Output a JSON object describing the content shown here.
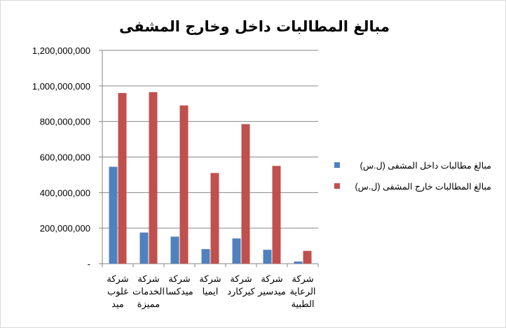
{
  "chart_data": {
    "type": "bar",
    "title": "مبالغ المطالبات داخل وخارج المشفى",
    "xlabel": "",
    "ylabel": "",
    "ylim": [
      0,
      1200000000
    ],
    "yticks": [
      0,
      200000000,
      400000000,
      600000000,
      800000000,
      1000000000,
      1200000000
    ],
    "ytick_labels": [
      "-",
      "200,000,000",
      "400,000,000",
      "600,000,000",
      "800,000,000",
      "1,000,000,000",
      "1,200,000,000"
    ],
    "categories": [
      [
        "شركة",
        "غلوب",
        "ميد"
      ],
      [
        "شركة",
        "الخدمات",
        "مميزة"
      ],
      [
        "شركة",
        "ميدكسا"
      ],
      [
        "شركة",
        "ايميا"
      ],
      [
        "شركة",
        "كيركارد"
      ],
      [
        "شركة",
        "ميدسير"
      ],
      [
        "شركة",
        "الرعاية",
        "الطبية"
      ]
    ],
    "series": [
      {
        "name": "مبالغ مطالبات داخل المشفى (ل.س)",
        "color": "#4f81bd",
        "values": [
          545000000,
          175000000,
          152000000,
          82000000,
          142000000,
          78000000,
          12000000
        ]
      },
      {
        "name": "مبالغ المطالبات خارج المشفى (ل.س)",
        "color": "#c0504d",
        "values": [
          960000000,
          965000000,
          890000000,
          510000000,
          785000000,
          550000000,
          72000000
        ]
      }
    ],
    "grid": true,
    "legend_position": "right"
  }
}
